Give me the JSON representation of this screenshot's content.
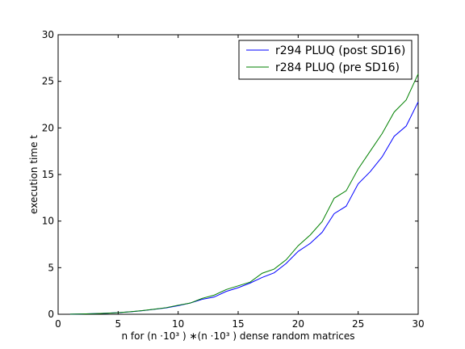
{
  "chart_data": {
    "type": "line",
    "title": "",
    "xlabel": "n for (n ·10³ ) ∗(n ·10³ ) dense random matrices",
    "ylabel": "execution time t",
    "xlim": [
      0,
      30
    ],
    "ylim": [
      0,
      30
    ],
    "xticks": [
      0,
      5,
      10,
      15,
      20,
      25,
      30
    ],
    "yticks": [
      0,
      5,
      10,
      15,
      20,
      25,
      30
    ],
    "grid": false,
    "legend_position": "upper-right",
    "x": [
      1,
      2,
      3,
      4,
      5,
      6,
      7,
      8,
      9,
      10,
      11,
      12,
      13,
      14,
      15,
      16,
      17,
      18,
      19,
      20,
      21,
      22,
      23,
      24,
      25,
      26,
      27,
      28,
      29,
      30
    ],
    "series": [
      {
        "name": "r294 PLUQ (post SD16)",
        "color": "#0000ff",
        "values": [
          0.01,
          0.03,
          0.06,
          0.11,
          0.17,
          0.26,
          0.38,
          0.53,
          0.68,
          0.92,
          1.2,
          1.6,
          1.85,
          2.45,
          2.85,
          3.35,
          3.95,
          4.45,
          5.45,
          6.75,
          7.6,
          8.8,
          10.8,
          11.6,
          14.0,
          15.3,
          16.9,
          19.1,
          20.2,
          22.8
        ]
      },
      {
        "name": "r284 PLUQ (pre SD16)",
        "color": "#008000",
        "values": [
          0.01,
          0.03,
          0.06,
          0.11,
          0.17,
          0.27,
          0.39,
          0.54,
          0.71,
          0.97,
          1.2,
          1.7,
          2.05,
          2.65,
          3.05,
          3.45,
          4.4,
          4.85,
          5.85,
          7.35,
          8.5,
          9.95,
          12.45,
          13.25,
          15.6,
          17.5,
          19.4,
          21.7,
          23.0,
          25.8
        ]
      }
    ]
  }
}
